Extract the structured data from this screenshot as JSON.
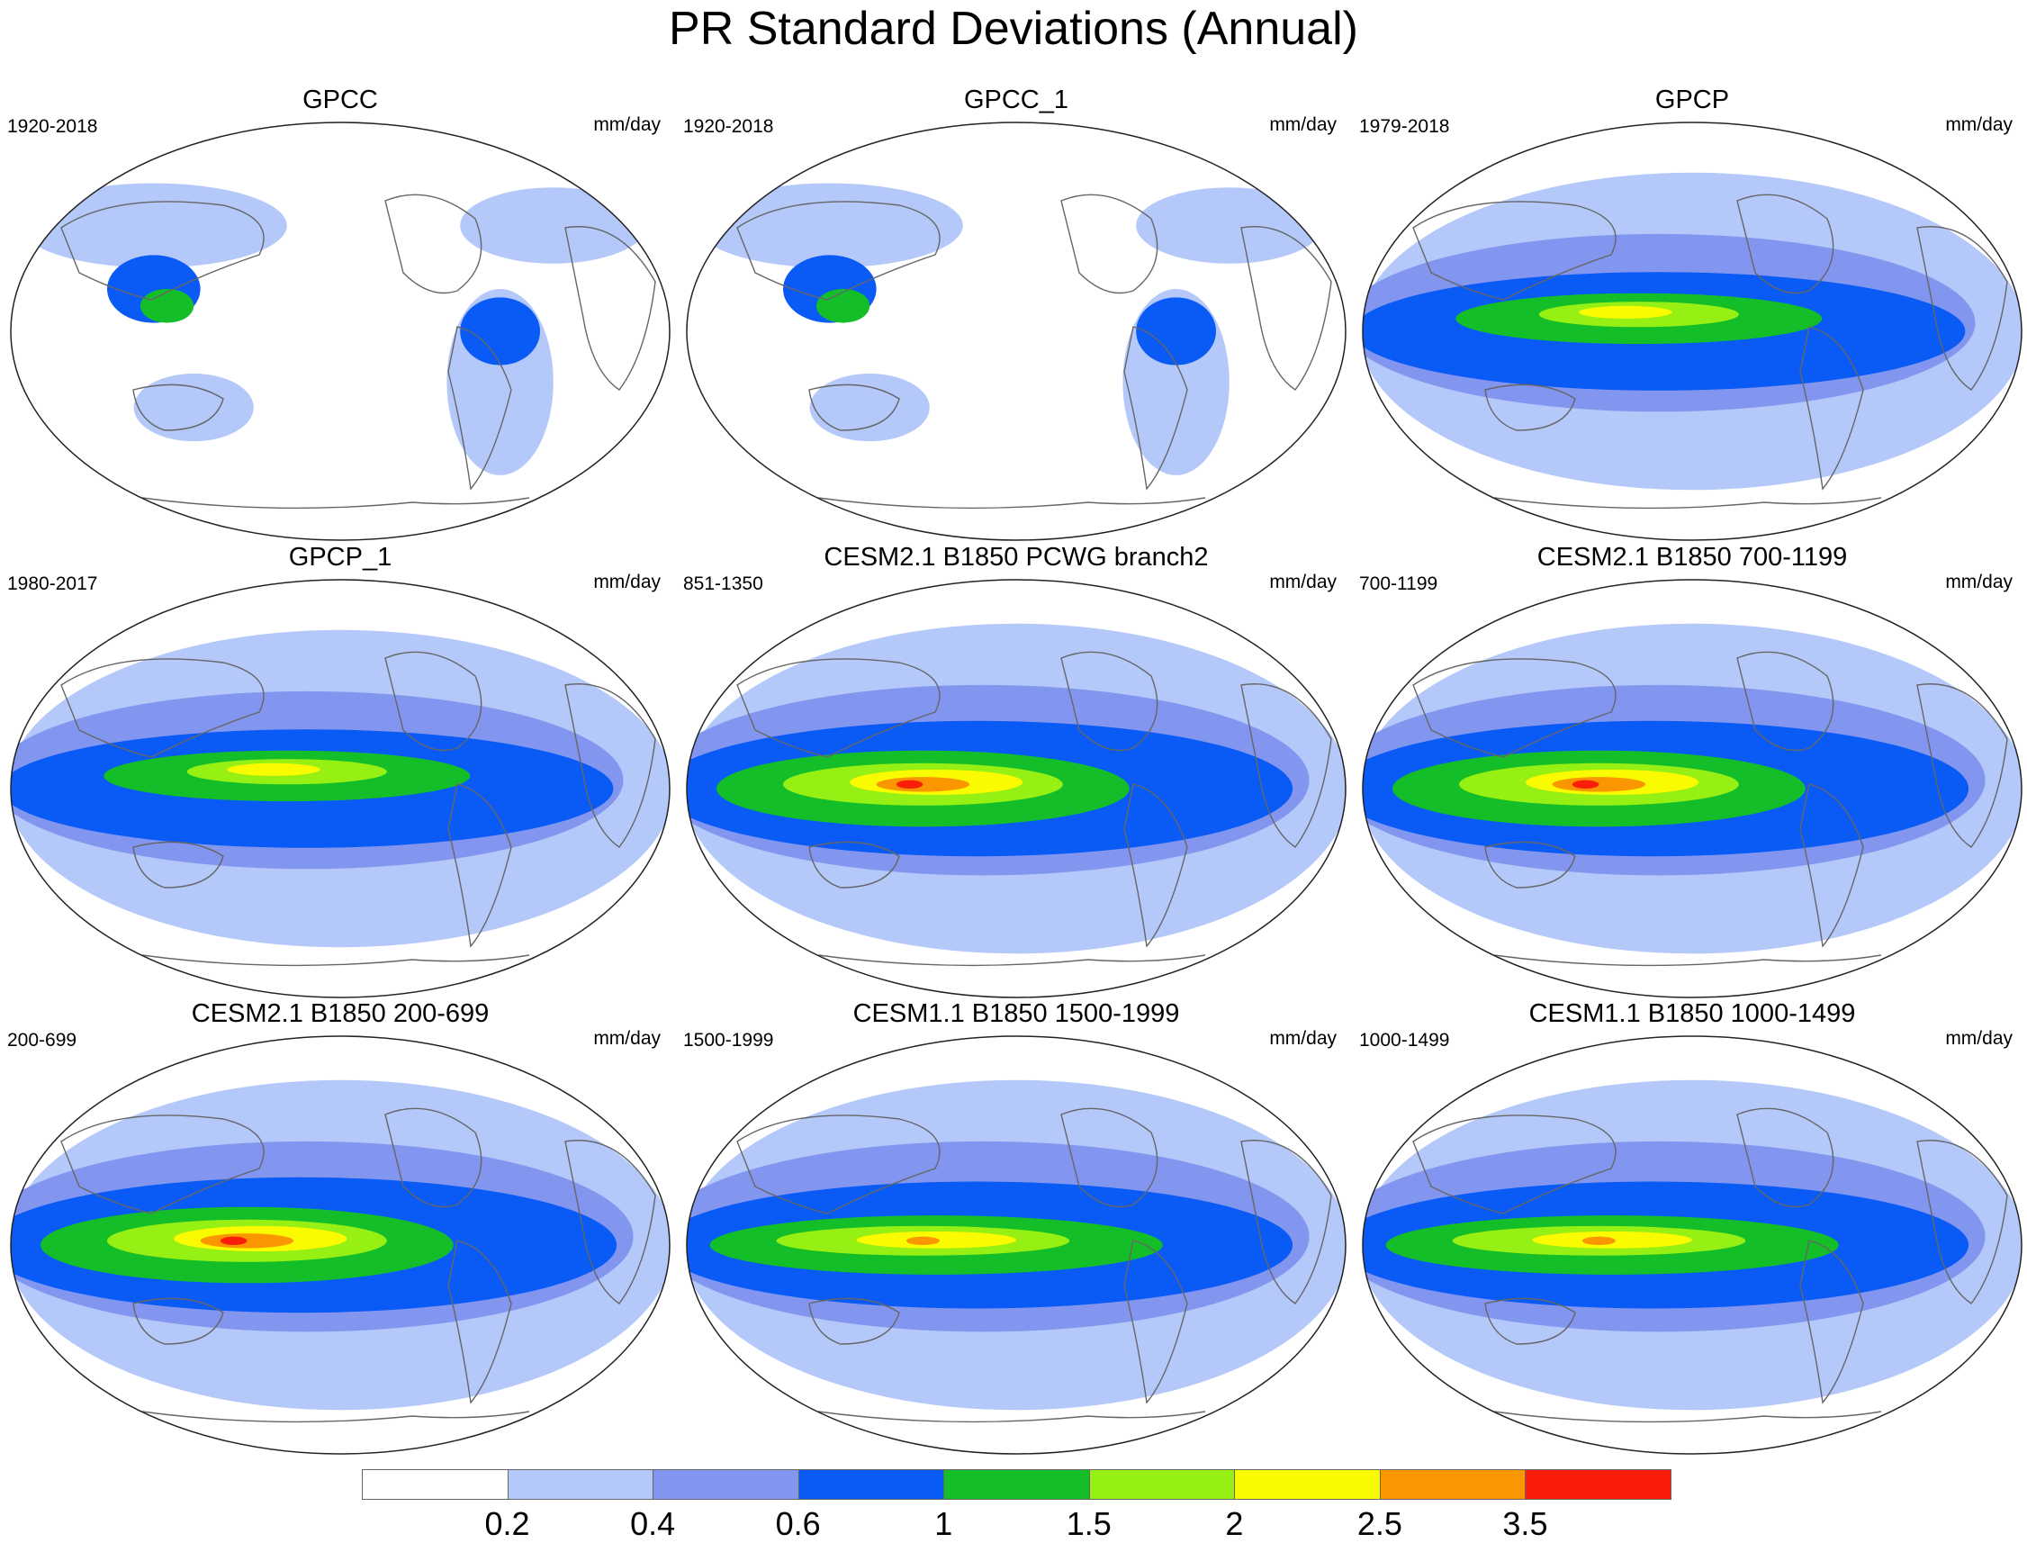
{
  "title": "PR Standard Deviations (Annual)",
  "panels": [
    {
      "title": "GPCC",
      "left": "1920-2018",
      "right": "mm/day",
      "style": "obs_land"
    },
    {
      "title": "GPCC_1",
      "left": "1920-2018",
      "right": "mm/day",
      "style": "obs_land"
    },
    {
      "title": "GPCP",
      "left": "1979-2018",
      "right": "mm/day",
      "style": "obs"
    },
    {
      "title": "GPCP_1",
      "left": "1980-2017",
      "right": "mm/day",
      "style": "obs"
    },
    {
      "title": "CESM2.1 B1850 PCWG branch2",
      "left": "851-1350",
      "right": "mm/day",
      "style": "model_strong"
    },
    {
      "title": "CESM2.1 B1850 700-1199",
      "left": "700-1199",
      "right": "mm/day",
      "style": "model_strong"
    },
    {
      "title": "CESM2.1 B1850 200-699",
      "left": "200-699",
      "right": "mm/day",
      "style": "model_strong"
    },
    {
      "title": "CESM1.1 B1850 1500-1999",
      "left": "1500-1999",
      "right": "mm/day",
      "style": "model_mid"
    },
    {
      "title": "CESM1.1 B1850 1000-1499",
      "left": "1000-1499",
      "right": "mm/day",
      "style": "model_mid"
    }
  ],
  "colorbar": {
    "labels": [
      "0.2",
      "0.4",
      "0.6",
      "1",
      "1.5",
      "2",
      "2.5",
      "3.5"
    ],
    "colors": [
      "#ffffff",
      "#b4c8fa",
      "#8296f0",
      "#0a5af5",
      "#14be28",
      "#96f014",
      "#fafa00",
      "#fa9600",
      "#fa1e0a"
    ]
  }
}
